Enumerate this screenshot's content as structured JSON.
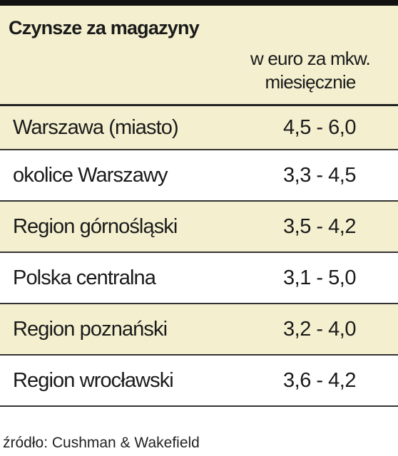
{
  "header": {
    "title": "Czynsze za magazyny",
    "unit": "w euro za mkw. miesięcznie"
  },
  "table": {
    "rows": [
      [
        "Warszawa (miasto)",
        "4,5 - 6,0"
      ],
      [
        "okolice Warszawy",
        "3,3 - 4,5"
      ],
      [
        "Region górnośląski",
        "3,5 - 4,2"
      ],
      [
        "Polska centralna",
        "3,1 - 5,0"
      ],
      [
        "Region poznański",
        "3,2 - 4,0"
      ],
      [
        "Region wrocławski",
        "3,6 - 4,2"
      ]
    ]
  },
  "source": "źródło: Cushman & Wakefield"
}
